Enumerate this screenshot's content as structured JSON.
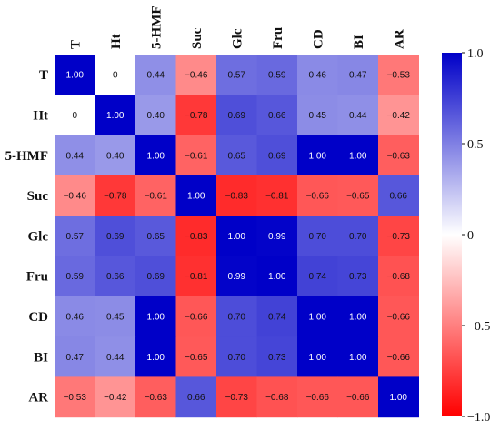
{
  "chart_data": {
    "type": "heatmap",
    "variables": [
      "T",
      "Ht",
      "5-HMF",
      "Suc",
      "Glc",
      "Fru",
      "CD",
      "BI",
      "AR"
    ],
    "matrix": [
      [
        "1.00",
        "0",
        "0.44",
        "−0.46",
        "0.57",
        "0.59",
        "0.46",
        "0.47",
        "−0.53"
      ],
      [
        "0",
        "1.00",
        "0.40",
        "−0.78",
        "0.69",
        "0.66",
        "0.45",
        "0.44",
        "−0.42"
      ],
      [
        "0.44",
        "0.40",
        "1.00",
        "−0.61",
        "0.65",
        "0.69",
        "1.00",
        "1.00",
        "−0.63"
      ],
      [
        "−0.46",
        "−0.78",
        "−0.61",
        "1.00",
        "−0.83",
        "−0.81",
        "−0.66",
        "−0.65",
        "0.66"
      ],
      [
        "0.57",
        "0.69",
        "0.65",
        "−0.83",
        "1.00",
        "0.99",
        "0.70",
        "0.70",
        "−0.73"
      ],
      [
        "0.59",
        "0.66",
        "0.69",
        "−0.81",
        "0.99",
        "1.00",
        "0.74",
        "0.73",
        "−0.68"
      ],
      [
        "0.46",
        "0.45",
        "1.00",
        "−0.66",
        "0.70",
        "0.74",
        "1.00",
        "1.00",
        "−0.66"
      ],
      [
        "0.47",
        "0.44",
        "1.00",
        "−0.65",
        "0.70",
        "0.73",
        "1.00",
        "1.00",
        "−0.66"
      ],
      [
        "−0.53",
        "−0.42",
        "−0.63",
        "0.66",
        "−0.73",
        "−0.68",
        "−0.66",
        "−0.66",
        "1.00"
      ]
    ],
    "colorbar": {
      "range": [
        -1.0,
        1.0
      ],
      "ticks": [
        "1.0",
        "0.5",
        "0",
        "−0.5",
        "−1.0"
      ],
      "tick_values": [
        1.0,
        0.5,
        0,
        -0.5,
        -1.0
      ],
      "colors": {
        "negative": "#ff0000",
        "zero": "#ffffff",
        "positive": "#0000c8"
      }
    },
    "title": "",
    "xlabel": "",
    "ylabel": "",
    "legend": "right"
  }
}
